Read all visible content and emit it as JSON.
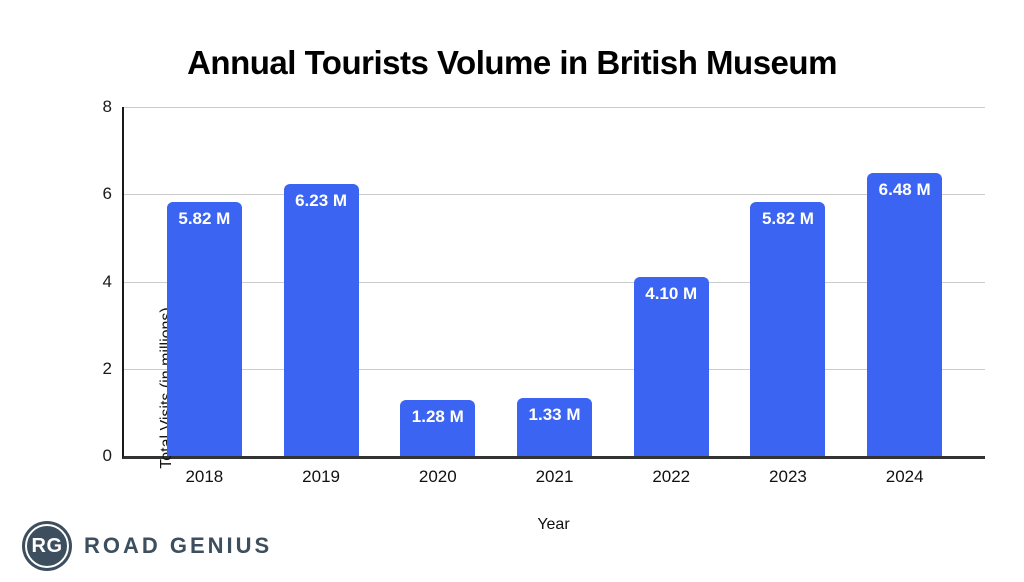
{
  "chart_data": {
    "type": "bar",
    "title": "Annual Tourists Volume in British Museum",
    "categories": [
      "2018",
      "2019",
      "2020",
      "2021",
      "2022",
      "2023",
      "2024"
    ],
    "values": [
      5.82,
      6.23,
      1.28,
      1.33,
      4.1,
      5.82,
      6.48
    ],
    "bar_labels": [
      "5.82 M",
      "6.23 M",
      "1.28 M",
      "1.33 M",
      "4.10 M",
      "5.82 M",
      "6.48 M"
    ],
    "xlabel": "Year",
    "ylabel": "Total Visits (in millions)",
    "ylim": [
      0,
      8
    ],
    "yticks": [
      0,
      2,
      4,
      6,
      8
    ],
    "grid": true,
    "legend": "none",
    "bar_color": "#3A64F1",
    "bar_label_color": "#ffffff",
    "gridline_color": "#cccccc"
  },
  "branding": {
    "logo_monogram": "RG",
    "logo_text": "ROAD GENIUS",
    "logo_color": "#3D4F5E"
  }
}
